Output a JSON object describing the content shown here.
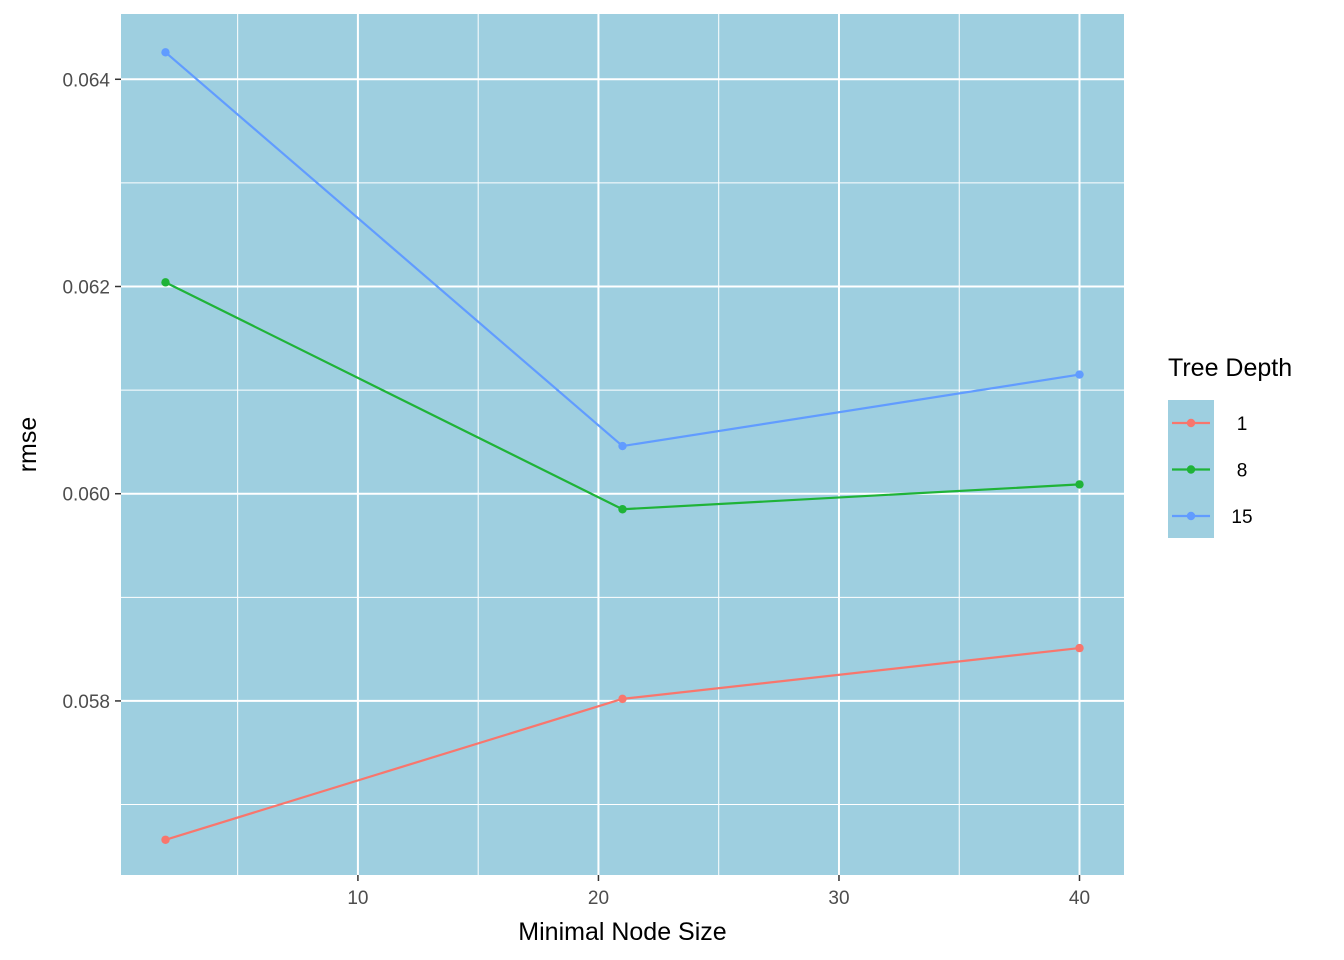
{
  "chart_data": {
    "type": "line",
    "title": "",
    "xlabel": "Minimal Node Size",
    "ylabel": "rmse",
    "xlim": [
      0.15,
      41.85
    ],
    "ylim": [
      0.05632,
      0.06463
    ],
    "x_ticks": [
      10,
      20,
      30,
      40
    ],
    "x_tick_labels": [
      "10",
      "20",
      "30",
      "40"
    ],
    "y_ticks": [
      0.058,
      0.06,
      0.062,
      0.064
    ],
    "y_tick_labels": [
      "0.058",
      "0.060",
      "0.062",
      "0.064"
    ],
    "x_minor": [
      5,
      15,
      25,
      35
    ],
    "y_minor": [
      0.057,
      0.059,
      0.061,
      0.063
    ],
    "grid": true,
    "panel_background": "#9ecfe0",
    "grid_color": "#ffffff",
    "legend": {
      "title": "Tree Depth",
      "placement": "right"
    },
    "series": [
      {
        "name": "1",
        "color": "#f8766d",
        "x": [
          2,
          21,
          40
        ],
        "y": [
          0.05666,
          0.05802,
          0.05851
        ]
      },
      {
        "name": "8",
        "color": "#1fb338",
        "x": [
          2,
          21,
          40
        ],
        "y": [
          0.06204,
          0.05985,
          0.06009
        ]
      },
      {
        "name": "15",
        "color": "#619cff",
        "x": [
          2,
          21,
          40
        ],
        "y": [
          0.06426,
          0.06046,
          0.06115
        ]
      }
    ]
  }
}
